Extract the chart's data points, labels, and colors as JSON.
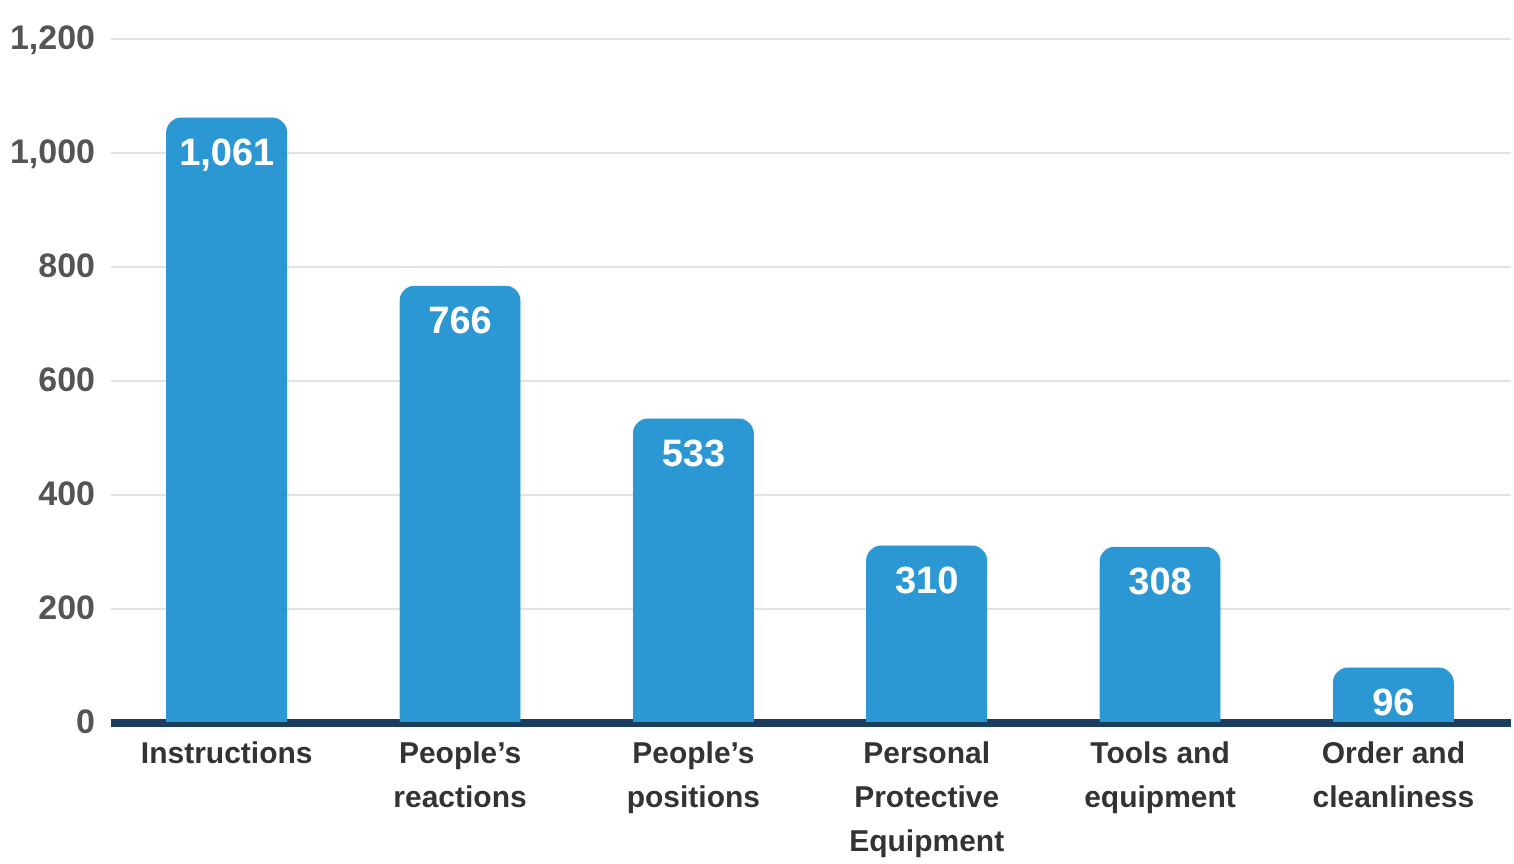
{
  "chart_data": {
    "type": "bar",
    "categories": [
      "Instructions",
      "People’s reactions",
      "People’s positions",
      "Personal Protective Equipment",
      "Tools and equipment",
      "Order and cleanliness"
    ],
    "values": [
      1061,
      766,
      533,
      310,
      308,
      96
    ],
    "value_labels": [
      "1,061",
      "766",
      "533",
      "310",
      "308",
      "96"
    ],
    "color": "#2b97d3",
    "ylim": [
      0,
      1200
    ],
    "yticks": [
      0,
      200,
      400,
      600,
      800,
      {
        "value": 1000,
        "label": "1,000"
      },
      {
        "value": 1200,
        "label": "1,200"
      }
    ],
    "grid": "y"
  }
}
